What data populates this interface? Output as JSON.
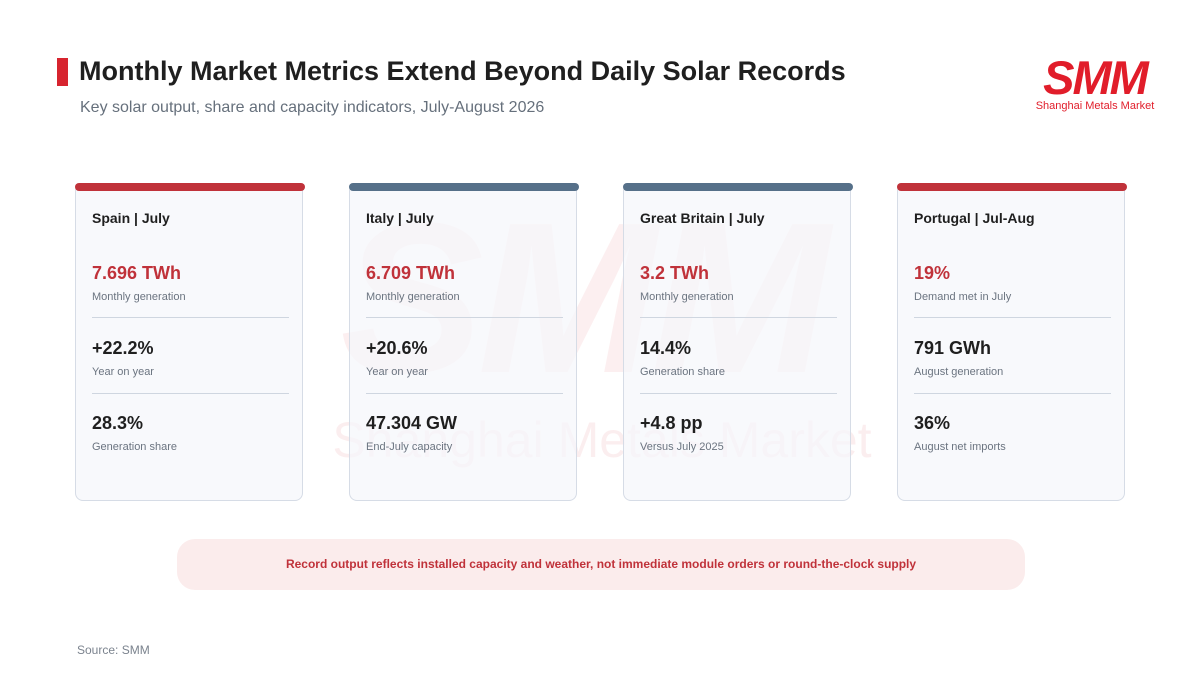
{
  "header": {
    "title": "Monthly Market Metrics Extend Beyond Daily Solar Records",
    "subtitle": "Key solar output, share and capacity indicators, July-August 2026"
  },
  "brand": {
    "mark": "SMM",
    "name": "Shanghai Metals Market"
  },
  "watermark": {
    "mark": "SMM",
    "name": "Shanghai Metals Market"
  },
  "colors": {
    "accent_red": "#c0323a",
    "accent_blue": "#567089",
    "brand_red": "#e11d2a"
  },
  "cards": [
    {
      "title": "Spain | July",
      "accent": "red",
      "metrics": [
        {
          "value": "7.696 TWh",
          "label": "Monthly generation"
        },
        {
          "value": "+22.2%",
          "label": "Year on year"
        },
        {
          "value": "28.3%",
          "label": "Generation share"
        }
      ]
    },
    {
      "title": "Italy | July",
      "accent": "blue",
      "metrics": [
        {
          "value": "6.709 TWh",
          "label": "Monthly generation"
        },
        {
          "value": "+20.6%",
          "label": "Year on year"
        },
        {
          "value": "47.304 GW",
          "label": "End-July capacity"
        }
      ]
    },
    {
      "title": "Great Britain | July",
      "accent": "blue",
      "metrics": [
        {
          "value": "3.2 TWh",
          "label": "Monthly generation"
        },
        {
          "value": "14.4%",
          "label": "Generation share"
        },
        {
          "value": "+4.8 pp",
          "label": "Versus July 2025"
        }
      ]
    },
    {
      "title": "Portugal | Jul-Aug",
      "accent": "red",
      "metrics": [
        {
          "value": "19%",
          "label": "Demand met in July"
        },
        {
          "value": "791 GWh",
          "label": "August generation"
        },
        {
          "value": "36%",
          "label": "August net imports"
        }
      ]
    }
  ],
  "note": "Record output reflects installed capacity and weather, not immediate module orders or round-the-clock supply",
  "source": "Source: SMM"
}
